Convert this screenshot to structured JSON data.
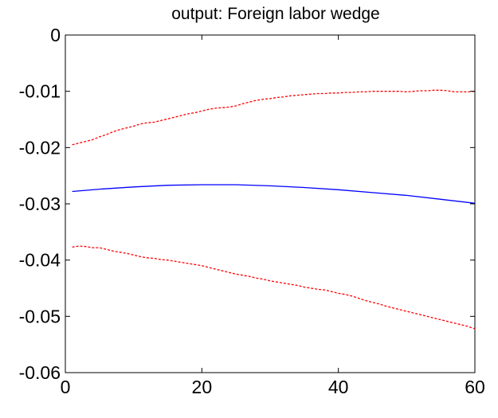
{
  "chart_data": {
    "type": "line",
    "title": "output: Foreign labor wedge",
    "xlabel": "",
    "ylabel": "",
    "xlim": [
      0,
      60
    ],
    "ylim": [
      -0.06,
      0
    ],
    "xticks": [
      0,
      20,
      40,
      60
    ],
    "xtick_labels": [
      "0",
      "20",
      "40",
      "60"
    ],
    "yticks": [
      0,
      -0.01,
      -0.02,
      -0.03,
      -0.04,
      -0.05,
      -0.06
    ],
    "ytick_labels": [
      "0",
      "-0.01",
      "-0.02",
      "-0.03",
      "-0.04",
      "-0.05",
      "-0.06"
    ],
    "grid": false,
    "legend": "none",
    "series": [
      {
        "color": "#ff0000",
        "style": "dashed",
        "x": [
          1,
          2,
          3,
          4,
          5,
          6,
          7,
          8,
          9,
          10,
          11,
          12,
          13,
          14,
          15,
          16,
          17,
          18,
          19,
          20,
          21,
          22,
          23,
          24,
          25,
          26,
          27,
          28,
          29,
          30,
          31,
          32,
          33,
          34,
          35,
          36,
          37,
          38,
          39,
          40,
          41,
          42,
          43,
          44,
          45,
          46,
          47,
          48,
          49,
          50,
          51,
          52,
          53,
          54,
          55,
          56,
          57,
          58,
          59,
          60
        ],
        "values": [
          -0.0195,
          -0.0192,
          -0.0189,
          -0.0186,
          -0.0181,
          -0.0177,
          -0.0172,
          -0.0168,
          -0.0165,
          -0.0162,
          -0.0158,
          -0.0156,
          -0.0155,
          -0.0152,
          -0.0149,
          -0.0146,
          -0.0143,
          -0.014,
          -0.0138,
          -0.0135,
          -0.0132,
          -0.013,
          -0.0129,
          -0.0128,
          -0.0126,
          -0.0122,
          -0.0119,
          -0.0116,
          -0.0114,
          -0.0113,
          -0.0111,
          -0.011,
          -0.0108,
          -0.0107,
          -0.0106,
          -0.0105,
          -0.0104,
          -0.0104,
          -0.0103,
          -0.0103,
          -0.0102,
          -0.0102,
          -0.0101,
          -0.0101,
          -0.01,
          -0.01,
          -0.01,
          -0.01,
          -0.01,
          -0.0101,
          -0.01,
          -0.0099,
          -0.0099,
          -0.0098,
          -0.0098,
          -0.0099,
          -0.0101,
          -0.0101,
          -0.0101,
          -0.01
        ]
      },
      {
        "color": "#0000ff",
        "style": "solid",
        "x": [
          1,
          5,
          10,
          15,
          20,
          25,
          30,
          35,
          40,
          45,
          50,
          55,
          60
        ],
        "values": [
          -0.0278,
          -0.0274,
          -0.027,
          -0.0267,
          -0.0266,
          -0.0266,
          -0.0268,
          -0.0271,
          -0.0275,
          -0.028,
          -0.0285,
          -0.0292,
          -0.0299
        ]
      },
      {
        "color": "#ff0000",
        "style": "dashed",
        "x": [
          1,
          2,
          3,
          4,
          5,
          6,
          7,
          8,
          9,
          10,
          11,
          12,
          13,
          14,
          15,
          16,
          17,
          18,
          19,
          20,
          21,
          22,
          23,
          24,
          25,
          26,
          27,
          28,
          29,
          30,
          31,
          32,
          33,
          34,
          35,
          36,
          37,
          38,
          39,
          40,
          41,
          42,
          43,
          44,
          45,
          46,
          47,
          48,
          49,
          50,
          51,
          52,
          53,
          54,
          55,
          56,
          57,
          58,
          59,
          60
        ],
        "values": [
          -0.0377,
          -0.0375,
          -0.0376,
          -0.0378,
          -0.0378,
          -0.0381,
          -0.0384,
          -0.0386,
          -0.0388,
          -0.0391,
          -0.0394,
          -0.0396,
          -0.0397,
          -0.0399,
          -0.04,
          -0.0402,
          -0.0404,
          -0.0406,
          -0.0408,
          -0.041,
          -0.0413,
          -0.0416,
          -0.0419,
          -0.0422,
          -0.0425,
          -0.0427,
          -0.0429,
          -0.0432,
          -0.0434,
          -0.0437,
          -0.0439,
          -0.0441,
          -0.0443,
          -0.0445,
          -0.0448,
          -0.045,
          -0.0452,
          -0.0453,
          -0.0456,
          -0.0459,
          -0.0461,
          -0.0464,
          -0.0468,
          -0.0472,
          -0.0475,
          -0.0478,
          -0.0482,
          -0.0485,
          -0.0488,
          -0.0491,
          -0.0494,
          -0.0497,
          -0.05,
          -0.0503,
          -0.0506,
          -0.0509,
          -0.0512,
          -0.0515,
          -0.0518,
          -0.0522
        ]
      }
    ]
  }
}
